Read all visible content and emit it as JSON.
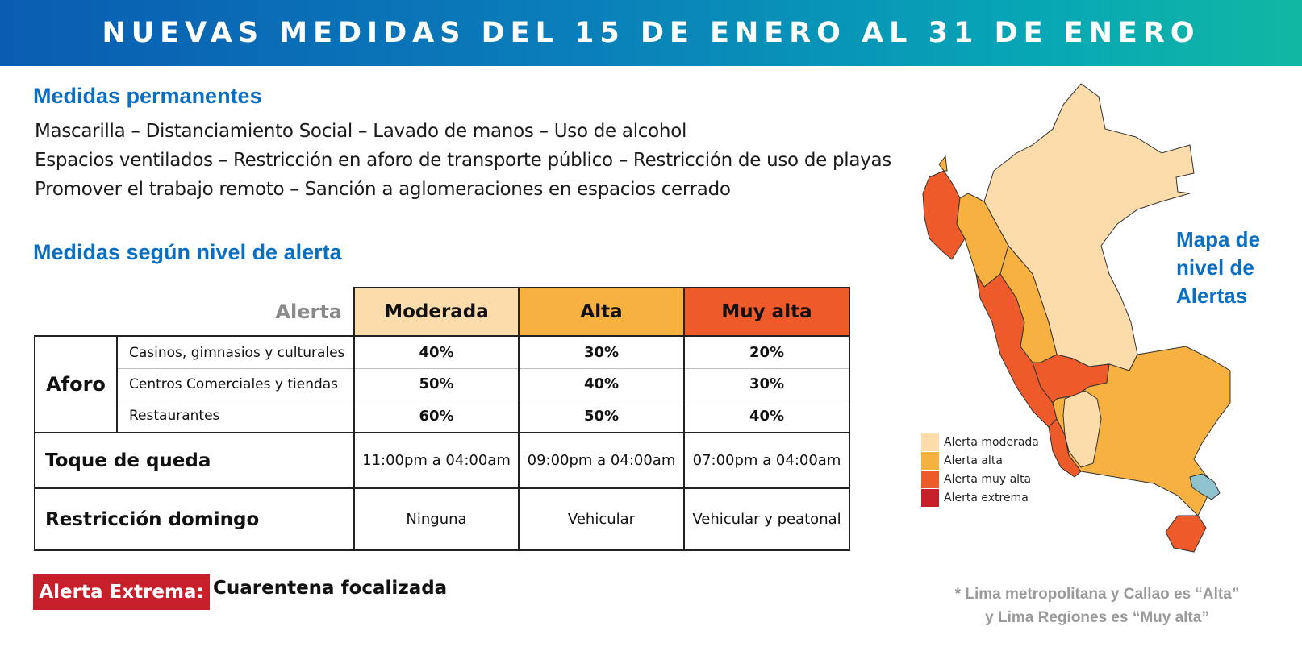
{
  "banner": {
    "title": "NUEVAS MEDIDAS DEL 15 DE ENERO AL 31 DE ENERO"
  },
  "permanent": {
    "title": "Medidas permanentes",
    "lines": [
      "Mascarilla – Distanciamiento Social – Lavado de manos  – Uso de alcohol",
      "Espacios ventilados – Restricción en aforo de transporte público – Restricción de uso de playas",
      "Promover el trabajo remoto – Sanción a aglomeraciones en espacios cerrado"
    ]
  },
  "by_level": {
    "title": "Medidas según nivel de alerta"
  },
  "table": {
    "corner_label": "Alerta",
    "columns": [
      {
        "label": "Moderada",
        "color": "#fcdcaa"
      },
      {
        "label": "Alta",
        "color": "#f6b140"
      },
      {
        "label": "Muy alta",
        "color": "#ef5a2a"
      }
    ],
    "aforo": {
      "label": "Aforo",
      "rows": [
        {
          "label": "Casinos, gimnasios y culturales",
          "values": [
            "40%",
            "30%",
            "20%"
          ]
        },
        {
          "label": "Centros Comerciales y tiendas",
          "values": [
            "50%",
            "40%",
            "30%"
          ]
        },
        {
          "label": "Restaurantes",
          "values": [
            "60%",
            "50%",
            "40%"
          ]
        }
      ]
    },
    "curfew": {
      "label": "Toque de queda",
      "values": [
        "11:00pm a 04:00am",
        "09:00pm a 04:00am",
        "07:00pm a 04:00am"
      ]
    },
    "sunday": {
      "label": "Restricción domingo",
      "values": [
        "Ninguna",
        "Vehicular",
        "Vehicular y peatonal"
      ]
    }
  },
  "extreme": {
    "badge": "Alerta Extrema:",
    "text": "Cuarentena focalizada",
    "color": "#c8202b"
  },
  "map": {
    "title_lines": [
      "Mapa de",
      "nivel de",
      "Alertas"
    ],
    "legend": [
      {
        "label": "Alerta moderada",
        "color": "#fcdcaa"
      },
      {
        "label": "Alerta alta",
        "color": "#f6b140"
      },
      {
        "label": "Alerta muy alta",
        "color": "#ef5a2a"
      },
      {
        "label": "Alerta extrema",
        "color": "#c8202b"
      }
    ],
    "lake_color": "#8fc3cf"
  },
  "footnote": {
    "lines": [
      "* Lima metropolitana y Callao es “Alta”",
      "y Lima Regiones es “Muy alta”"
    ]
  }
}
